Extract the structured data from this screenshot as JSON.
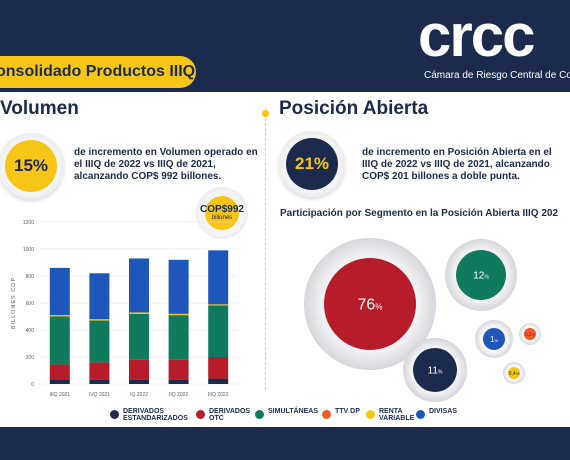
{
  "header": {
    "title": "onsolidado Productos IIIQ",
    "logo": "crcc",
    "logo_subtitle": "Cámara de Riesgo Central de Contrap"
  },
  "volumen": {
    "title": "Volumen",
    "kpi": "15%",
    "text": "de incremento en Volumen operado en el IIIQ de 2022 vs IIIQ de 2021, alcanzando COP$ 992 billones.",
    "bubble_value": "COP$992",
    "bubble_unit": "billones"
  },
  "posicion": {
    "title": "Posición Abierta",
    "kpi": "21%",
    "text": "de incremento en Posición Abierta en el IIIQ de 2022 vs IIIQ de 2021, alcanzando COP$ 201 billones a doble punta.",
    "pie_title": "Participación por Segmento en la Posición Abierta IIIQ 202"
  },
  "legend": [
    {
      "label": "DERIVADOS ESTANDARIZADOS",
      "color": "#1c2b4d"
    },
    {
      "label": "DERIVADOS OTC",
      "color": "#b71c2a"
    },
    {
      "label": "SIMULTÁNEAS",
      "color": "#0f7a5e"
    },
    {
      "label": "TTV DP",
      "color": "#f05a22"
    },
    {
      "label": "RENTA VARIABLE",
      "color": "#f6c515"
    },
    {
      "label": "DIVISAS",
      "color": "#1e56b9"
    }
  ],
  "chart_data": [
    {
      "type": "bar",
      "stacked": true,
      "ylabel": "BILLONES COP",
      "ylim": [
        0,
        1200
      ],
      "yticks": [
        "0",
        "200",
        "400",
        "600",
        "800",
        "1000",
        "1200"
      ],
      "categories": [
        "IIIQ 2021",
        "IVQ 2021",
        "IQ 2022",
        "IIQ 2022",
        "IIIQ 2022"
      ],
      "series": [
        {
          "name": "DERIVADOS ESTANDARIZADOS",
          "color": "#1c2b4d",
          "values": [
            35,
            30,
            30,
            30,
            40
          ]
        },
        {
          "name": "DERIVADOS OTC",
          "color": "#b71c2a",
          "values": [
            110,
            130,
            150,
            150,
            160
          ]
        },
        {
          "name": "SIMULTÁNEAS",
          "color": "#0f7a5e",
          "values": [
            355,
            310,
            340,
            330,
            380
          ]
        },
        {
          "name": "TTV DP",
          "color": "#f05a22",
          "values": [
            0,
            0,
            0,
            0,
            5
          ]
        },
        {
          "name": "RENTA VARIABLE",
          "color": "#f6c515",
          "values": [
            10,
            10,
            10,
            10,
            5
          ]
        },
        {
          "name": "DIVISAS",
          "color": "#1e56b9",
          "values": [
            350,
            340,
            400,
            400,
            400
          ]
        }
      ]
    },
    {
      "type": "bubble",
      "segments": [
        {
          "name": "DERIVADOS OTC",
          "value": 76,
          "label": "76",
          "color": "#b71c2a"
        },
        {
          "name": "SIMULTÁNEAS",
          "value": 12,
          "label": "12",
          "color": "#0f7a5e"
        },
        {
          "name": "DERIVADOS ESTANDARIZADOS",
          "value": 11,
          "label": "11",
          "color": "#1c2b4d"
        },
        {
          "name": "DIVISAS",
          "value": 1,
          "label": "1",
          "color": "#1e56b9"
        },
        {
          "name": "TTV DP",
          "value": 0.2,
          "label": "0,2",
          "color": "#f05a22"
        },
        {
          "name": "RENTA VARIABLE",
          "value": 0.4,
          "label": "0,4",
          "color": "#f6c515"
        }
      ]
    }
  ]
}
